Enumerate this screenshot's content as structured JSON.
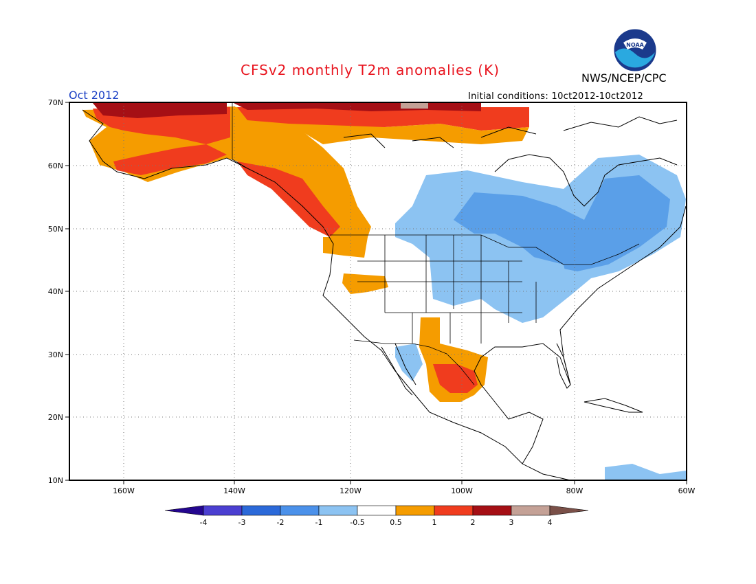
{
  "header": {
    "title": "CFSv2 monthly T2m anomalies (K)",
    "organization": "NWS/NCEP/CPC",
    "logo_text": "NOAA",
    "valid_month": "Oct 2012",
    "initial_conditions": "Initial conditions: 10ct2012-10ct2012"
  },
  "map": {
    "projection": "lat-lon",
    "lon_range": [
      -172,
      -60
    ],
    "lat_range": [
      10,
      70
    ],
    "lat_labels": [
      "70N",
      "60N",
      "50N",
      "40N",
      "30N",
      "20N",
      "10N"
    ],
    "lon_labels": [
      "160W",
      "140W",
      "120W",
      "100W",
      "80W",
      "60W"
    ],
    "gridlines": "dotted",
    "field": "2m temperature anomaly forecast",
    "regions": [
      {
        "name": "northern-alaska-yukon-coast",
        "category": "2 to 3",
        "color": "#a50f15"
      },
      {
        "name": "alaska-northwest-canada",
        "category": "1 to 2",
        "color": "#f03c1e"
      },
      {
        "name": "alaska-interior-warm",
        "category": "0.5 to 1",
        "color": "#f59c00"
      },
      {
        "name": "canadian-arctic-coast",
        "category": "1 to 2",
        "color": "#f03c1e"
      },
      {
        "name": "british-columbia-coast",
        "category": "1 to 2",
        "color": "#f03c1e"
      },
      {
        "name": "pacific-northwest",
        "category": "0.5 to 1",
        "color": "#f59c00"
      },
      {
        "name": "canadian-prairies-to-quebec",
        "category": "-1 to -0.5",
        "color": "#8cc3f2"
      },
      {
        "name": "ontario-quebec-core",
        "category": "-2 to -1",
        "color": "#5a9fe8"
      },
      {
        "name": "upper-midwest-great-lakes",
        "category": "-1 to -0.5",
        "color": "#8cc3f2"
      },
      {
        "name": "texas-northeast-mexico",
        "category": "1 to 2",
        "color": "#f03c1e"
      },
      {
        "name": "southern-plains-mexico",
        "category": "0.5 to 1",
        "color": "#f59c00"
      },
      {
        "name": "northwest-mexico",
        "category": "-1 to -0.5",
        "color": "#8cc3f2"
      },
      {
        "name": "bering-arctic-edge",
        "category": "3 to 4",
        "color": "#c4a196"
      }
    ]
  },
  "colorbar": {
    "labels": [
      "-4",
      "-3",
      "-2",
      "-1",
      "-0.5",
      "0.5",
      "1",
      "2",
      "3",
      "4"
    ],
    "colors": [
      "#24068f",
      "#4b3fd1",
      "#2b69d9",
      "#4b91ea",
      "#8cc3f2",
      "#ffffff",
      "#f59c00",
      "#f03c1e",
      "#a50f15",
      "#c4a196"
    ],
    "lower_extend_color": "#24068f",
    "upper_extend_color": "#7a5048"
  }
}
